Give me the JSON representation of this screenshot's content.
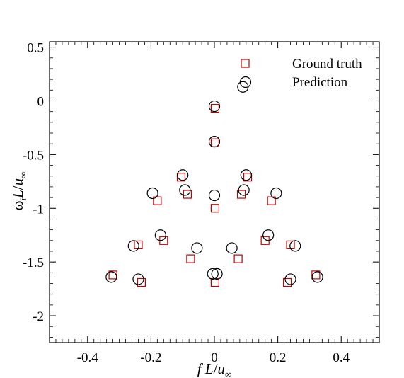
{
  "chart_data": {
    "type": "scatter",
    "xlim": [
      -0.52,
      0.52
    ],
    "ylim": [
      -2.25,
      0.55
    ],
    "xticks": [
      -0.4,
      -0.2,
      0,
      0.2,
      0.4
    ],
    "xtick_labels": [
      "-0.4",
      "-0.2",
      "0",
      "0.2",
      "0.4"
    ],
    "yticks": [
      0.5,
      0,
      -0.5,
      -1,
      -1.5,
      -2
    ],
    "ytick_labels": [
      "0.5",
      "0",
      "-0.5",
      "-1",
      "-1.5",
      "-2"
    ],
    "xlabel": {
      "f": "f",
      "L": "L",
      "slash": "/",
      "u": "u",
      "sub": "∞"
    },
    "ylabel": {
      "omega": "ω",
      "sub_i": "i",
      "L": "L",
      "slash": "/",
      "u": "u",
      "sub": "∞"
    },
    "legend_position": "top-right",
    "grid": false,
    "series": [
      {
        "name": "Ground truth",
        "marker": "square",
        "color": "#c00000",
        "points": [
          [
            0.002,
            -0.07
          ],
          [
            0.002,
            -0.39
          ],
          [
            -0.105,
            -0.71
          ],
          [
            0.105,
            -0.71
          ],
          [
            -0.085,
            -0.87
          ],
          [
            0.085,
            -0.87
          ],
          [
            -0.18,
            -0.93
          ],
          [
            0.18,
            -0.93
          ],
          [
            0.002,
            -1.0
          ],
          [
            -0.16,
            -1.3
          ],
          [
            0.16,
            -1.3
          ],
          [
            -0.24,
            -1.34
          ],
          [
            0.24,
            -1.34
          ],
          [
            -0.075,
            -1.47
          ],
          [
            0.075,
            -1.47
          ],
          [
            -0.32,
            -1.62
          ],
          [
            0.32,
            -1.62
          ],
          [
            -0.23,
            -1.69
          ],
          [
            0.23,
            -1.69
          ],
          [
            0.002,
            -1.69
          ]
        ]
      },
      {
        "name": "Prediction",
        "marker": "circle",
        "color": "#000000",
        "points": [
          [
            0.0,
            -0.05
          ],
          [
            0.0,
            -0.38
          ],
          [
            -0.1,
            -0.69
          ],
          [
            0.1,
            -0.69
          ],
          [
            -0.093,
            -0.83
          ],
          [
            0.093,
            -0.83
          ],
          [
            -0.195,
            -0.86
          ],
          [
            0.195,
            -0.86
          ],
          [
            0.0,
            -0.88
          ],
          [
            -0.17,
            -1.25
          ],
          [
            0.17,
            -1.25
          ],
          [
            -0.255,
            -1.35
          ],
          [
            0.255,
            -1.35
          ],
          [
            -0.055,
            -1.37
          ],
          [
            0.055,
            -1.37
          ],
          [
            -0.325,
            -1.64
          ],
          [
            0.325,
            -1.64
          ],
          [
            -0.24,
            -1.66
          ],
          [
            0.24,
            -1.66
          ],
          [
            -0.005,
            -1.61
          ],
          [
            0.008,
            -1.61
          ],
          [
            0.09,
            0.13
          ]
        ]
      }
    ]
  }
}
